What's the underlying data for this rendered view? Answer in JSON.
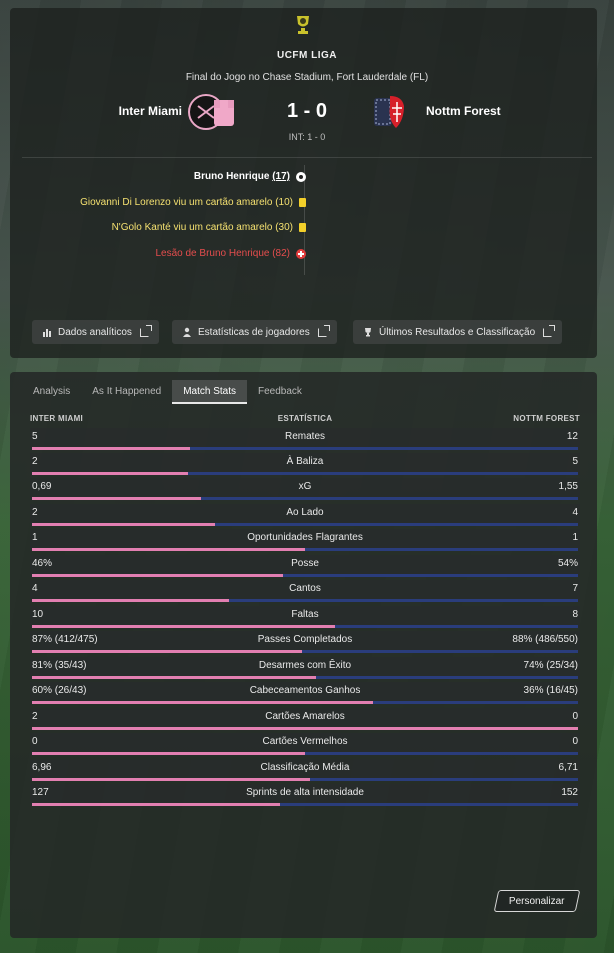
{
  "header": {
    "league": "UCFM LIGA",
    "venue": "Final do Jogo no Chase Stadium, Fort Lauderdale (FL)",
    "home_team": "Inter Miami",
    "away_team": "Nottm Forest",
    "score": "1 - 0",
    "half_time": "INT: 1 - 0"
  },
  "events": [
    {
      "type": "goal",
      "text": "Bruno Henrique",
      "minute": "(17)"
    },
    {
      "type": "yellow",
      "text": "Giovanni Di Lorenzo viu um cartão amarelo (10)"
    },
    {
      "type": "yellow",
      "text": "N'Golo Kanté viu um cartão amarelo (30)"
    },
    {
      "type": "injury",
      "text": "Lesão de Bruno Henrique (82)"
    }
  ],
  "buttons": {
    "analytics": "Dados analíticos",
    "player_stats": "Estatísticas de jogadores",
    "results": "Últimos Resultados e Classificação"
  },
  "tabs": [
    "Analysis",
    "As It Happened",
    "Match Stats",
    "Feedback"
  ],
  "active_tab": "Match Stats",
  "stats_header": {
    "home": "INTER MIAMI",
    "center": "ESTATÍSTICA",
    "away": "NOTTM FOREST"
  },
  "stats": [
    {
      "label": "Remates",
      "home": "5",
      "away": "12",
      "home_share": 0.29
    },
    {
      "label": "À Baliza",
      "home": "2",
      "away": "5",
      "home_share": 0.285
    },
    {
      "label": "xG",
      "home": "0,69",
      "away": "1,55",
      "home_share": 0.31
    },
    {
      "label": "Ao Lado",
      "home": "2",
      "away": "4",
      "home_share": 0.335
    },
    {
      "label": "Oportunidades Flagrantes",
      "home": "1",
      "away": "1",
      "home_share": 0.5
    },
    {
      "label": "Posse",
      "home": "46%",
      "away": "54%",
      "home_share": 0.46
    },
    {
      "label": "Cantos",
      "home": "4",
      "away": "7",
      "home_share": 0.36
    },
    {
      "label": "Faltas",
      "home": "10",
      "away": "8",
      "home_share": 0.555
    },
    {
      "label": "Passes Completados",
      "home": "87% (412/475)",
      "away": "88% (486/550)",
      "home_share": 0.495
    },
    {
      "label": "Desarmes com Êxito",
      "home": "81% (35/43)",
      "away": "74% (25/34)",
      "home_share": 0.52
    },
    {
      "label": "Cabeceamentos Ganhos",
      "home": "60% (26/43)",
      "away": "36% (16/45)",
      "home_share": 0.625
    },
    {
      "label": "Cartões Amarelos",
      "home": "2",
      "away": "0",
      "home_share": 1.0
    },
    {
      "label": "Cartões Vermelhos",
      "home": "0",
      "away": "0",
      "home_share": 0.5
    },
    {
      "label": "Classificação Média",
      "home": "6,96",
      "away": "6,71",
      "home_share": 0.51
    },
    {
      "label": "Sprints de alta intensidade",
      "home": "127",
      "away": "152",
      "home_share": 0.455
    }
  ],
  "customize_label": "Personalizar",
  "colors": {
    "home_bar": "#e27fb1",
    "away_bar": "#2a3d7c",
    "yellow_event": "#f4e070",
    "injury_event": "#e44d4d"
  },
  "icons": {
    "league": "league-trophy-icon",
    "goal": "football-icon",
    "yellow": "yellow-card-icon",
    "injury": "injury-cross-icon",
    "analytics": "bar-chart-icon",
    "players": "person-icon",
    "results": "trophy-icon",
    "external": "external-link-icon"
  }
}
